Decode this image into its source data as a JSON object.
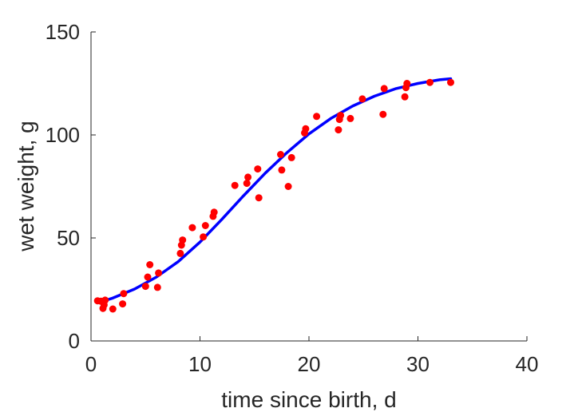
{
  "chart_data": {
    "type": "scatter",
    "xlabel": "time since birth, d",
    "ylabel": "wet weight, g",
    "xlim": [
      0,
      40
    ],
    "ylim": [
      0,
      150
    ],
    "xticks": [
      0,
      10,
      20,
      30,
      40
    ],
    "yticks": [
      0,
      50,
      100,
      150
    ],
    "xtick_labels": [
      "0",
      "10",
      "20",
      "30",
      "40"
    ],
    "ytick_labels": [
      "0",
      "50",
      "100",
      "150"
    ],
    "grid": false,
    "series": [
      {
        "kind": "points",
        "color": "#ff0000",
        "points": [
          [
            0.6,
            19.5
          ],
          [
            0.9,
            19.3
          ],
          [
            1.1,
            15.8
          ],
          [
            1.2,
            17.5
          ],
          [
            1.3,
            19.8
          ],
          [
            2.0,
            15.5
          ],
          [
            2.9,
            18.0
          ],
          [
            3.0,
            23.0
          ],
          [
            5.0,
            26.5
          ],
          [
            5.2,
            31.0
          ],
          [
            5.4,
            37.0
          ],
          [
            6.1,
            26.0
          ],
          [
            6.2,
            33.0
          ],
          [
            8.2,
            42.5
          ],
          [
            8.3,
            46.5
          ],
          [
            8.4,
            49.0
          ],
          [
            9.3,
            55.0
          ],
          [
            10.3,
            50.5
          ],
          [
            10.5,
            56.0
          ],
          [
            11.2,
            60.5
          ],
          [
            11.3,
            62.5
          ],
          [
            13.2,
            75.5
          ],
          [
            14.3,
            76.5
          ],
          [
            14.4,
            79.5
          ],
          [
            15.3,
            83.5
          ],
          [
            15.4,
            69.5
          ],
          [
            17.4,
            90.5
          ],
          [
            17.5,
            83.0
          ],
          [
            18.1,
            75.0
          ],
          [
            18.4,
            89.0
          ],
          [
            19.6,
            101.0
          ],
          [
            19.7,
            103.0
          ],
          [
            20.7,
            109.0
          ],
          [
            22.7,
            102.5
          ],
          [
            22.8,
            107.5
          ],
          [
            22.9,
            109.5
          ],
          [
            23.8,
            108.0
          ],
          [
            24.9,
            117.5
          ],
          [
            26.8,
            110.0
          ],
          [
            26.9,
            122.5
          ],
          [
            28.8,
            118.5
          ],
          [
            28.9,
            123.0
          ],
          [
            29.0,
            125.0
          ],
          [
            31.1,
            125.5
          ],
          [
            33.0,
            125.5
          ]
        ]
      },
      {
        "kind": "curve",
        "color": "#0000ff",
        "points": [
          [
            0.6,
            18.5
          ],
          [
            2,
            20.8
          ],
          [
            4,
            25.2
          ],
          [
            6,
            31.0
          ],
          [
            8,
            38.5
          ],
          [
            10,
            48.0
          ],
          [
            12,
            59.0
          ],
          [
            14,
            70.5
          ],
          [
            16,
            81.5
          ],
          [
            18,
            91.5
          ],
          [
            20,
            100.5
          ],
          [
            22,
            108.0
          ],
          [
            24,
            114.0
          ],
          [
            26,
            118.8
          ],
          [
            28,
            122.5
          ],
          [
            30,
            125.0
          ],
          [
            32,
            126.8
          ],
          [
            33,
            127.3
          ]
        ]
      }
    ]
  }
}
